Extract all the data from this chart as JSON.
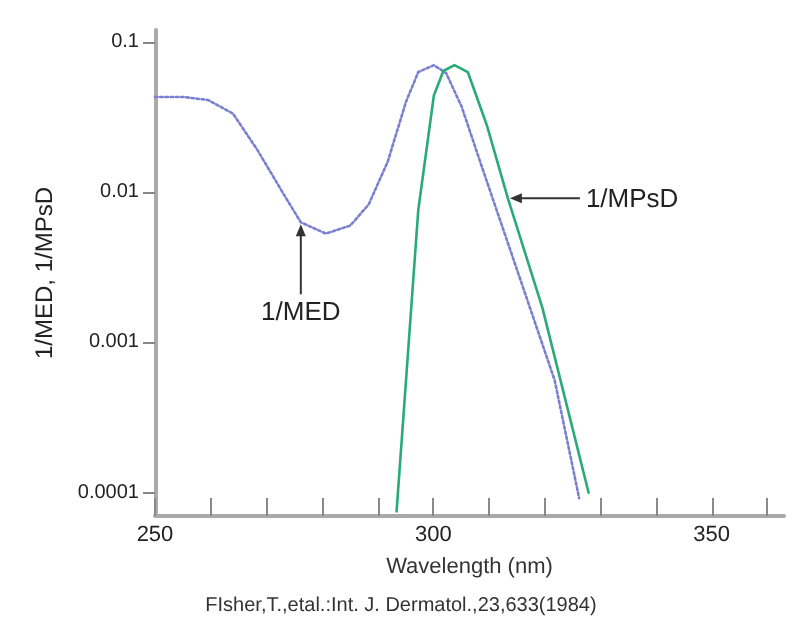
{
  "chart_data": {
    "type": "line",
    "xlabel": "Wavelength (nm)",
    "ylabel": "1/MED, 1/MPsD",
    "log": "y",
    "grid": false,
    "marker": "none",
    "xlim": [
      250,
      363
    ],
    "xticks": [
      250,
      {
        "value": 260,
        "label": null
      },
      {
        "value": 270,
        "label": null
      },
      {
        "value": 280,
        "label": null
      },
      {
        "value": 290,
        "label": null
      },
      300,
      {
        "value": 310,
        "label": null
      },
      {
        "value": 320,
        "label": null
      },
      {
        "value": 330,
        "label": null
      },
      {
        "value": 340,
        "label": null
      },
      350,
      {
        "value": 360,
        "label": null
      }
    ],
    "ylim": [
      7e-05,
      0.12
    ],
    "yticks": [
      0.0001,
      0.001,
      0.01,
      0.1
    ],
    "series": [
      {
        "color": "#7b7fd0",
        "line_style": "dotted",
        "x": [
          250,
          255.1,
          259.6,
          264,
          268.4,
          272.9,
          276.2,
          280.7,
          285.1,
          288.4,
          291.8,
          295.1,
          297.3,
          300.1,
          302.3,
          305.1,
          308.4,
          315.1,
          321.8,
          326.2
        ],
        "values": [
          0.043,
          0.043,
          0.041,
          0.0334,
          0.0191,
          0.01,
          0.0063,
          0.0053,
          0.006,
          0.0083,
          0.0159,
          0.04,
          0.063,
          0.07,
          0.062,
          0.037,
          0.016,
          0.003,
          0.00056,
          9.2e-05
        ]
      },
      {
        "color": "#2aaa78",
        "line_style": "solid",
        "x": [
          293.4,
          297.3,
          300.1,
          301.8,
          303.8,
          306.2,
          309.6,
          313.4,
          319.6,
          327.9
        ],
        "values": [
          7.5e-05,
          0.0076,
          0.044,
          0.064,
          0.07,
          0.063,
          0.028,
          0.0091,
          0.0017,
          0.0001
        ]
      }
    ],
    "annotations": [
      {
        "text": "1/MED",
        "x": 276.2,
        "y": 0.0063
      },
      {
        "text": "1/MPsD",
        "x": 313.4,
        "y": 0.0091
      },
      "FIsher,T.,etal.:Int. J. Dermatol.,23,633(1984)"
    ]
  }
}
